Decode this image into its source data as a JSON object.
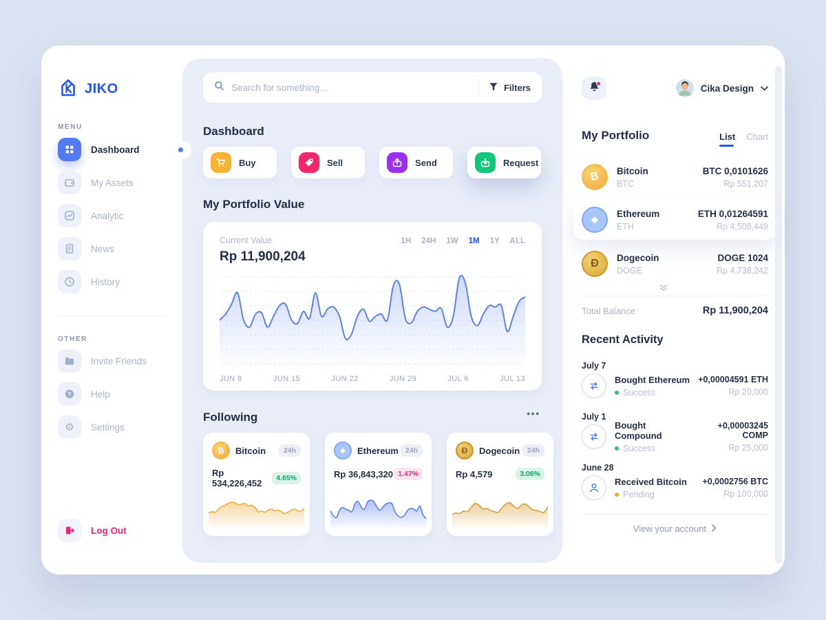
{
  "sidebar": {
    "logo_text": "JIKO",
    "menu_label": "MENU",
    "other_label": "OTHER",
    "menu_items": [
      {
        "label": "Dashboard",
        "icon": "grid-icon",
        "active": true
      },
      {
        "label": "My Assets",
        "icon": "wallet-icon",
        "active": false
      },
      {
        "label": "Analytic",
        "icon": "analytics-icon",
        "active": false
      },
      {
        "label": "News",
        "icon": "news-icon",
        "active": false
      },
      {
        "label": "History",
        "icon": "clock-icon",
        "active": false
      }
    ],
    "other_items": [
      {
        "label": "Invite Friends",
        "icon": "folder-icon"
      },
      {
        "label": "Help",
        "icon": "help-icon"
      },
      {
        "label": "Settings",
        "icon": "gear-icon"
      }
    ],
    "logout_label": "Log Out"
  },
  "search": {
    "placeholder": "Search for something...",
    "filters_label": "Filters"
  },
  "main": {
    "title": "Dashboard",
    "actions": [
      {
        "label": "Buy",
        "color": "#F9B233",
        "icon": "cart-icon"
      },
      {
        "label": "Sell",
        "color": "#F5256C",
        "icon": "tag-icon"
      },
      {
        "label": "Send",
        "color": "#9B30F2",
        "icon": "send-box-icon"
      },
      {
        "label": "Request",
        "color": "#12C57D",
        "icon": "request-box-icon"
      }
    ],
    "portfolio_value": {
      "section_title": "My Portfolio Value",
      "current_value_label": "Current Value",
      "current_value": "Rp 11,900,204",
      "ranges": [
        "1H",
        "24H",
        "1W",
        "1M",
        "1Y",
        "ALL"
      ],
      "active_range": "1M"
    },
    "following": {
      "section_title": "Following",
      "cards": [
        {
          "name": "Bitcoin",
          "period": "24h",
          "price": "Rp 534,226,452",
          "change": "4.65%",
          "direction": "up",
          "color": "#EFAC41"
        },
        {
          "name": "Ethereum",
          "period": "24h",
          "price": "Rp 36,843,320",
          "change": "1.47%",
          "direction": "down",
          "color": "#5B82E8"
        },
        {
          "name": "Dogecoin",
          "period": "24h",
          "price": "Rp 4,579",
          "change": "3.06%",
          "direction": "up",
          "color": "#D9A236"
        }
      ]
    }
  },
  "rightbar": {
    "user_name": "Cika Design",
    "portfolio": {
      "title": "My Portfolio",
      "tabs": [
        "List",
        "Chart"
      ],
      "active_tab": "List",
      "assets": [
        {
          "name": "Bitcoin",
          "symbol": "BTC",
          "amount": "BTC 0,0101626",
          "value": "Rp 551,207",
          "highlighted": false
        },
        {
          "name": "Ethereum",
          "symbol": "ETH",
          "amount": "ETH 0,01264591",
          "value": "Rp 4,508,449",
          "highlighted": true
        },
        {
          "name": "Dogecoin",
          "symbol": "DOGE",
          "amount": "DOGE 1024",
          "value": "Rp 4,738,242",
          "highlighted": false
        }
      ],
      "total_label": "Total Balance",
      "total_value": "Rp 11,900,204"
    },
    "activity": {
      "title": "Recent Activity",
      "groups": [
        {
          "date": "July 7",
          "title": "Bought Ethereum",
          "status": "Success",
          "status_color": "#2EC56A",
          "amount": "+0,00004591 ETH",
          "value": "Rp 20,000",
          "icon": "exchange-icon"
        },
        {
          "date": "July 1",
          "title": "Bought Compound",
          "status": "Success",
          "status_color": "#2EC56A",
          "amount": "+0,00003245 COMP",
          "value": "Rp 25,000",
          "icon": "exchange-icon"
        },
        {
          "date": "June 28",
          "title": "Received Bitcoin",
          "status": "Pending",
          "status_color": "#F5A623",
          "amount": "+0,0002756 BTC",
          "value": "Rp 100,000",
          "icon": "person-icon"
        }
      ]
    },
    "footer_link": "View your account"
  },
  "colors": {
    "accent": "#2353F5",
    "chart_line": "#5B82E8",
    "success": "#2EC56A",
    "pending": "#F5A623",
    "sell_pink": "#F5247C",
    "badge_up_bg": "#D8F4E7",
    "badge_down_bg": "#FDE3EE"
  },
  "chart_data": [
    {
      "type": "area",
      "title": "My Portfolio Value (1M)",
      "x_ticks": [
        "JUN 8",
        "JUN 15",
        "JUN 22",
        "JUN 29",
        "JUL 6",
        "JUL 13"
      ],
      "ylim": [
        0,
        100
      ],
      "y_axis": "hidden",
      "grid": "dashed-horizontal",
      "line_color": "#5B82E8",
      "values": [
        40,
        48,
        62,
        78,
        40,
        30,
        48,
        50,
        30,
        45,
        60,
        62,
        40,
        35,
        52,
        42,
        78,
        45,
        55,
        58,
        45,
        14,
        20,
        45,
        55,
        38,
        45,
        48,
        40,
        88,
        90,
        42,
        36,
        52,
        58,
        55,
        52,
        56,
        30,
        45,
        98,
        92,
        45,
        32,
        48,
        60,
        58,
        60,
        24,
        45,
        66,
        72
      ]
    },
    {
      "type": "area",
      "name": "Bitcoin 24h sparkline",
      "line_color": "#EFAC41",
      "values": [
        38,
        42,
        40,
        50,
        58,
        62,
        68,
        72,
        70,
        64,
        66,
        68,
        60,
        62,
        56,
        42,
        44,
        40,
        46,
        50,
        45,
        47,
        42,
        36,
        40,
        46,
        50,
        45,
        43,
        52
      ]
    },
    {
      "type": "area",
      "name": "Ethereum 24h sparkline",
      "line_color": "#5B82E8",
      "values": [
        45,
        28,
        24,
        48,
        55,
        50,
        46,
        42,
        68,
        74,
        56,
        50,
        72,
        78,
        74,
        58,
        46,
        56,
        66,
        70,
        66,
        40,
        28,
        24,
        30,
        46,
        52,
        50,
        44,
        60,
        32,
        20
      ]
    },
    {
      "type": "area",
      "name": "Dogecoin 24h sparkline",
      "line_color": "#D9A236",
      "values": [
        34,
        38,
        36,
        44,
        42,
        56,
        68,
        62,
        50,
        52,
        46,
        42,
        40,
        54,
        66,
        70,
        60,
        52,
        62,
        66,
        58,
        48,
        46,
        42,
        40,
        58
      ]
    }
  ]
}
